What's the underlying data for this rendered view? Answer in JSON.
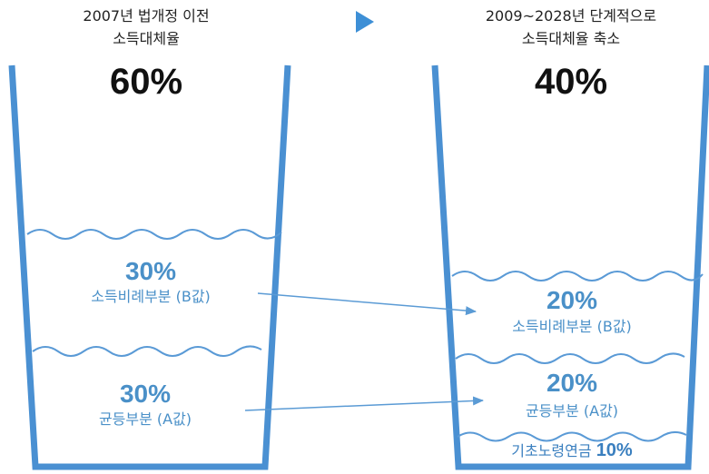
{
  "left": {
    "caption_line1": "2007년 법개정 이전",
    "caption_line2": "소득대체율",
    "total": "60%",
    "upper_pct": "30%",
    "upper_label": "소득비례부분 (B값)",
    "lower_pct": "30%",
    "lower_label": "균등부분 (A값)"
  },
  "right": {
    "caption_line1": "2009~2028년 단계적으로",
    "caption_line2": "소득대체율 축소",
    "total": "40%",
    "upper_pct": "20%",
    "upper_label": "소득비례부분 (B값)",
    "lower_pct": "20%",
    "lower_label": "균등부분 (A값)",
    "basic_label": "기초노령연금",
    "basic_pct": "10%"
  },
  "colors": {
    "cup": "#4a90d2",
    "wave": "#5a9ad6",
    "accent_text": "#4a90c8",
    "arrow": "#5b9bd5"
  }
}
